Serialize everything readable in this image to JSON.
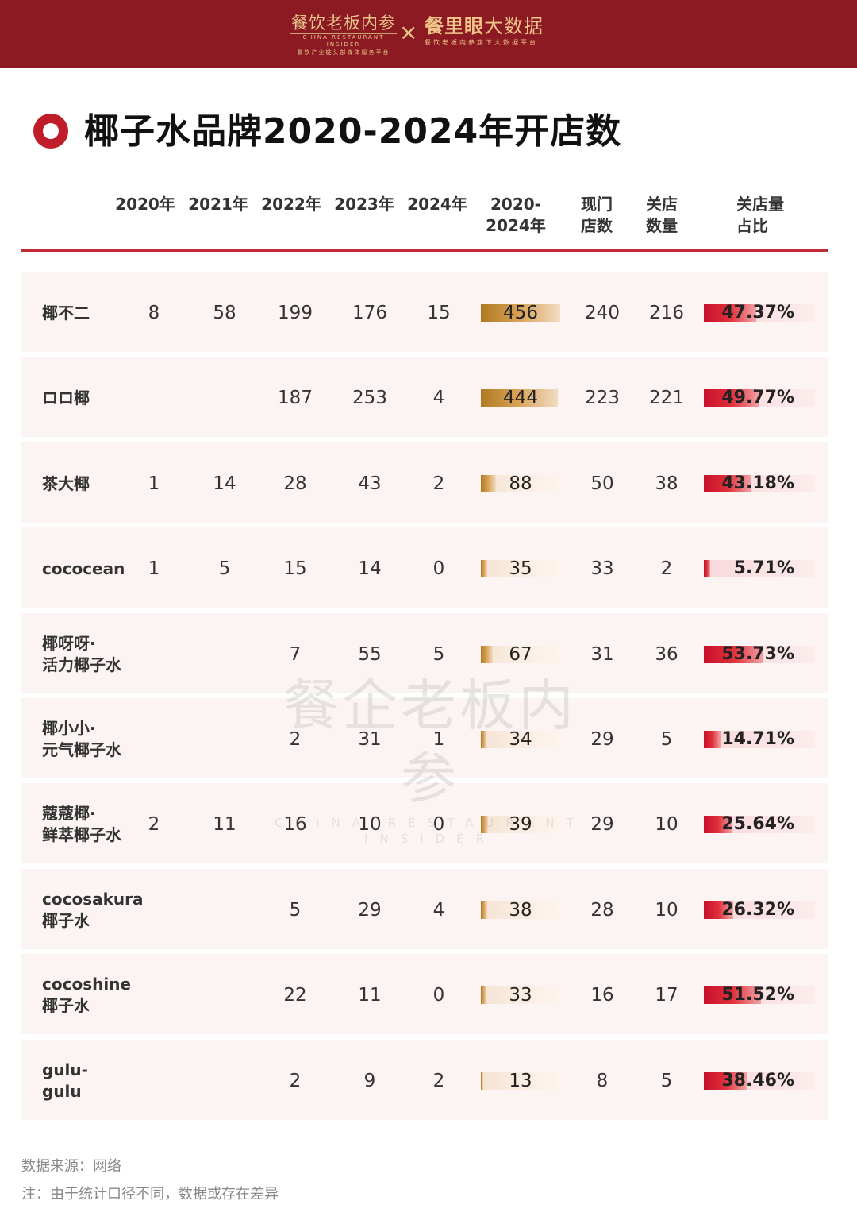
{
  "header": {
    "logo_left_main": "餐饮老板内参",
    "logo_left_en": "CHINA RESTAURANT INSIDER",
    "logo_left_cn": "餐饮产业链头部媒体服务平台",
    "separator": "×",
    "logo_right_main_bold": "餐里眼",
    "logo_right_main_thin": "大数据",
    "logo_right_cn": "餐饮老板内参旗下大数据平台"
  },
  "title": "椰子水品牌2020-2024年开店数",
  "columns": [
    "2020年",
    "2021年",
    "2022年",
    "2023年",
    "2024年",
    "2020-\n2024年",
    "现门\n店数",
    "关店\n数量",
    "关店量\n占比"
  ],
  "chart_data": {
    "type": "table",
    "title": "椰子水品牌2020-2024年开店数",
    "columns": [
      "2020年",
      "2021年",
      "2022年",
      "2023年",
      "2024年",
      "2020-2024年",
      "现门店数",
      "关店数量",
      "关店量占比"
    ],
    "rows": [
      {
        "brand": "椰不二",
        "y2020": "8",
        "y2021": "58",
        "y2022": "199",
        "y2023": "176",
        "y2024": "15",
        "total": 456,
        "current": "240",
        "closed": "216",
        "close_pct": 47.37,
        "close_pct_label": "47.37%"
      },
      {
        "brand": "ロロ椰",
        "y2020": "",
        "y2021": "",
        "y2022": "187",
        "y2023": "253",
        "y2024": "4",
        "total": 444,
        "current": "223",
        "closed": "221",
        "close_pct": 49.77,
        "close_pct_label": "49.77%"
      },
      {
        "brand": "茶大椰",
        "y2020": "1",
        "y2021": "14",
        "y2022": "28",
        "y2023": "43",
        "y2024": "2",
        "total": 88,
        "current": "50",
        "closed": "38",
        "close_pct": 43.18,
        "close_pct_label": "43.18%"
      },
      {
        "brand": "cococean",
        "y2020": "1",
        "y2021": "5",
        "y2022": "15",
        "y2023": "14",
        "y2024": "0",
        "total": 35,
        "current": "33",
        "closed": "2",
        "close_pct": 5.71,
        "close_pct_label": "5.71%"
      },
      {
        "brand": "椰呀呀·\n活力椰子水",
        "y2020": "",
        "y2021": "",
        "y2022": "7",
        "y2023": "55",
        "y2024": "5",
        "total": 67,
        "current": "31",
        "closed": "36",
        "close_pct": 53.73,
        "close_pct_label": "53.73%"
      },
      {
        "brand": "椰小小·\n元气椰子水",
        "y2020": "",
        "y2021": "",
        "y2022": "2",
        "y2023": "31",
        "y2024": "1",
        "total": 34,
        "current": "29",
        "closed": "5",
        "close_pct": 14.71,
        "close_pct_label": "14.71%"
      },
      {
        "brand": "蔻蔻椰·\n鲜萃椰子水",
        "y2020": "2",
        "y2021": "11",
        "y2022": "16",
        "y2023": "10",
        "y2024": "0",
        "total": 39,
        "current": "29",
        "closed": "10",
        "close_pct": 25.64,
        "close_pct_label": "25.64%"
      },
      {
        "brand": "cocosakura\n椰子水",
        "y2020": "",
        "y2021": "",
        "y2022": "5",
        "y2023": "29",
        "y2024": "4",
        "total": 38,
        "current": "28",
        "closed": "10",
        "close_pct": 26.32,
        "close_pct_label": "26.32%"
      },
      {
        "brand": "cocoshine\n椰子水",
        "y2020": "",
        "y2021": "",
        "y2022": "22",
        "y2023": "11",
        "y2024": "0",
        "total": 33,
        "current": "16",
        "closed": "17",
        "close_pct": 51.52,
        "close_pct_label": "51.52%"
      },
      {
        "brand": "gulu-\ngulu",
        "y2020": "",
        "y2021": "",
        "y2022": "2",
        "y2023": "9",
        "y2024": "2",
        "total": 13,
        "current": "8",
        "closed": "5",
        "close_pct": 38.46,
        "close_pct_label": "38.46%"
      }
    ],
    "total_max": 456
  },
  "watermark": {
    "main": "餐企老板内参",
    "en": "CHINA RESTAURANT INSIDER"
  },
  "footer": {
    "source": "数据来源：网络",
    "note": "注：由于统计口径不同，数据或存在差异"
  },
  "colors": {
    "accent": "#c01d2b",
    "header_bg": "#8b1a22",
    "gold": "#b07a22"
  }
}
